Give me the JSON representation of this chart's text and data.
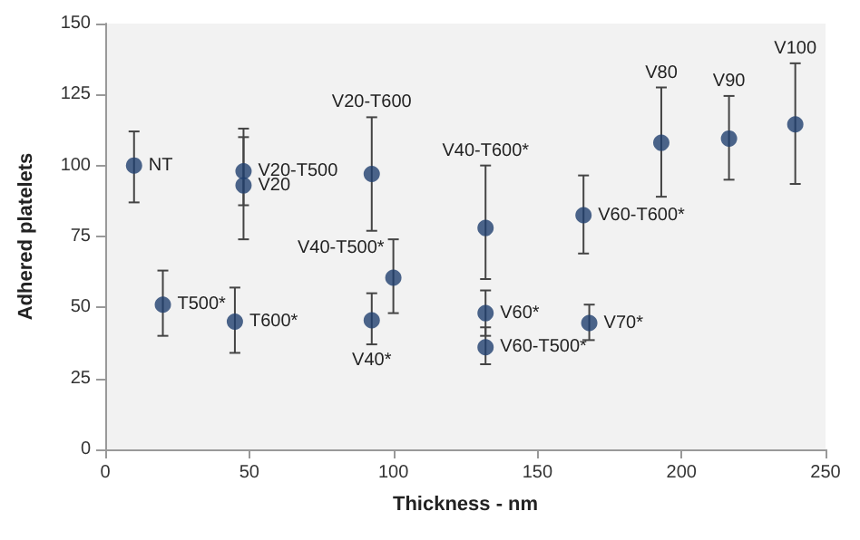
{
  "chart_data": {
    "type": "scatter",
    "xlabel": "Thickness - nm",
    "ylabel": "Adhered platelets",
    "x": [
      10,
      20,
      45,
      48,
      48,
      92.5,
      92.5,
      100,
      132,
      132,
      132,
      166,
      168,
      193,
      216.5,
      239.5
    ],
    "values": [
      100,
      51,
      45,
      98,
      93,
      97,
      45.5,
      60.5,
      78,
      48,
      36,
      82.5,
      44.5,
      108,
      109.5,
      114.5
    ],
    "errors": [
      [
        87,
        112
      ],
      [
        40,
        63
      ],
      [
        34,
        57
      ],
      [
        86,
        113
      ],
      [
        74,
        110
      ],
      [
        77,
        117
      ],
      [
        37,
        55
      ],
      [
        48,
        74
      ],
      [
        60,
        100
      ],
      [
        40,
        56
      ],
      [
        30,
        43
      ],
      [
        69,
        96.5
      ],
      [
        38.5,
        51
      ],
      [
        89,
        127.5
      ],
      [
        95,
        124.5
      ],
      [
        93.5,
        136
      ]
    ],
    "color": "#1f3f6e",
    "marker": "circle",
    "xlim": [
      0,
      250
    ],
    "xticks": [
      0,
      50,
      100,
      150,
      200,
      250
    ],
    "ylim": [
      0,
      150
    ],
    "yticks": [
      0,
      25,
      50,
      75,
      100,
      125,
      150
    ],
    "grid": false,
    "annotations": [
      {
        "text": "NT",
        "x": 10,
        "y": 100
      },
      {
        "text": "T500*",
        "x": 20,
        "y": 51
      },
      {
        "text": "T600*",
        "x": 45,
        "y": 45
      },
      {
        "text": "V20-T500",
        "x": 48,
        "y": 98
      },
      {
        "text": "V20",
        "x": 48,
        "y": 93
      },
      {
        "text": "V20-T600",
        "x": 92.5,
        "y": 117
      },
      {
        "text": "V40*",
        "x": 92.5,
        "y": 37
      },
      {
        "text": "V40-T500*",
        "x": 100,
        "y": 60.5
      },
      {
        "text": "V40-T600*",
        "x": 132,
        "y": 100
      },
      {
        "text": "V60*",
        "x": 132,
        "y": 48
      },
      {
        "text": "V60-T500*",
        "x": 132,
        "y": 36
      },
      {
        "text": "V60-T600*",
        "x": 166,
        "y": 82.5
      },
      {
        "text": "V70*",
        "x": 168,
        "y": 44.5
      },
      {
        "text": "V80",
        "x": 193,
        "y": 127.5
      },
      {
        "text": "V90",
        "x": 216.5,
        "y": 124.5
      },
      {
        "text": "V100",
        "x": 239.5,
        "y": 136
      }
    ]
  }
}
